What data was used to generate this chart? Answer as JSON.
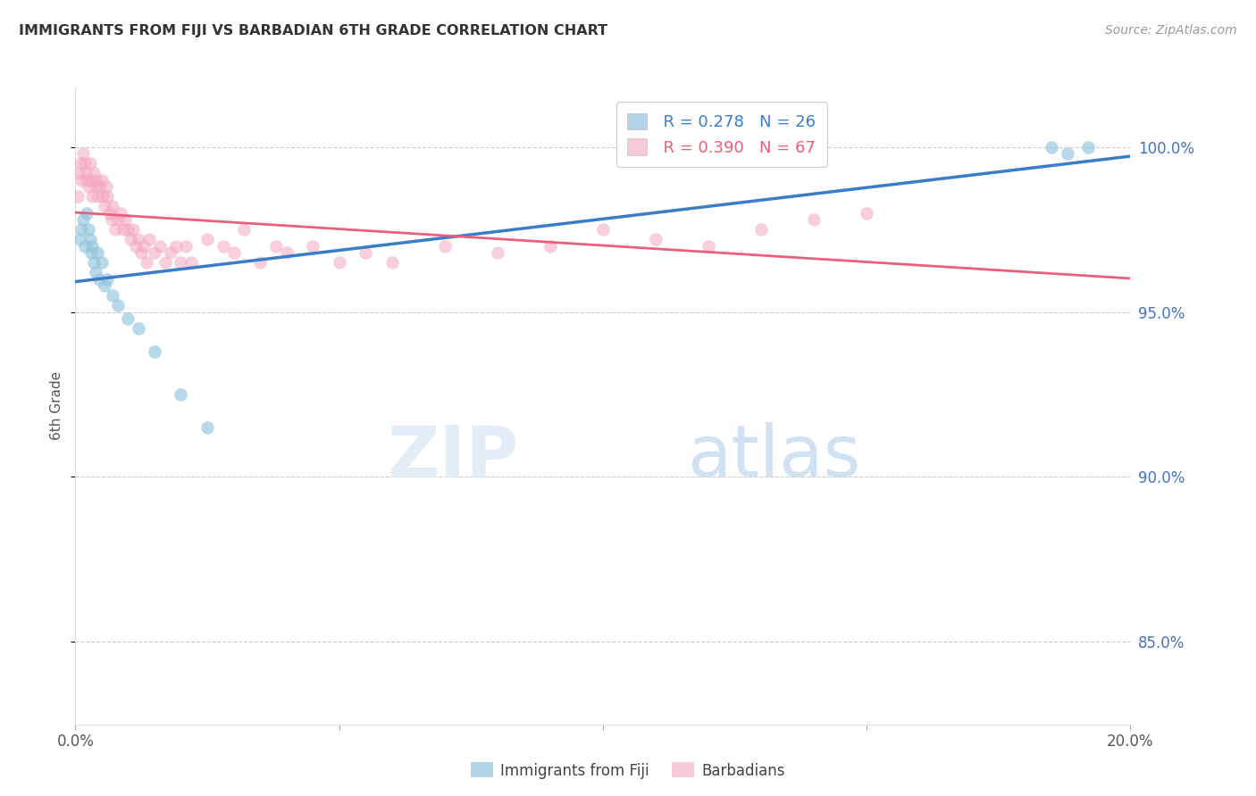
{
  "title": "IMMIGRANTS FROM FIJI VS BARBADIAN 6TH GRADE CORRELATION CHART",
  "source_text": "Source: ZipAtlas.com",
  "ylabel": "6th Grade",
  "xmin": 0.0,
  "xmax": 20.0,
  "ymin": 82.5,
  "ymax": 101.8,
  "fiji_color": "#92c5de",
  "barbadian_color": "#f4a6c0",
  "fiji_line_color": "#3b7dc8",
  "barbadian_line_color": "#e8607a",
  "legend_R_fiji": "R = 0.278",
  "legend_N_fiji": "N = 26",
  "legend_R_barb": "R = 0.390",
  "legend_N_barb": "N = 67",
  "fiji_x": [
    0.08,
    0.12,
    0.15,
    0.18,
    0.22,
    0.25,
    0.28,
    0.3,
    0.32,
    0.35,
    0.38,
    0.42,
    0.45,
    0.5,
    0.55,
    0.6,
    0.7,
    0.8,
    1.0,
    1.2,
    1.5,
    2.0,
    2.5,
    18.5,
    18.8,
    19.2
  ],
  "fiji_y": [
    97.2,
    97.5,
    97.8,
    97.0,
    98.0,
    97.5,
    97.2,
    96.8,
    97.0,
    96.5,
    96.2,
    96.8,
    96.0,
    96.5,
    95.8,
    96.0,
    95.5,
    95.2,
    94.8,
    94.5,
    93.8,
    92.5,
    91.5,
    100.0,
    99.8,
    100.0
  ],
  "barb_x": [
    0.05,
    0.08,
    0.1,
    0.12,
    0.15,
    0.18,
    0.2,
    0.22,
    0.25,
    0.28,
    0.3,
    0.32,
    0.35,
    0.38,
    0.4,
    0.42,
    0.45,
    0.5,
    0.52,
    0.55,
    0.58,
    0.6,
    0.65,
    0.68,
    0.7,
    0.75,
    0.8,
    0.85,
    0.9,
    0.95,
    1.0,
    1.05,
    1.1,
    1.15,
    1.2,
    1.25,
    1.3,
    1.35,
    1.4,
    1.5,
    1.6,
    1.7,
    1.8,
    1.9,
    2.0,
    2.1,
    2.2,
    2.5,
    2.8,
    3.0,
    3.2,
    3.5,
    3.8,
    4.0,
    4.5,
    5.0,
    5.5,
    6.0,
    7.0,
    8.0,
    9.0,
    10.0,
    11.0,
    12.0,
    13.0,
    14.0,
    15.0
  ],
  "barb_y": [
    98.5,
    99.2,
    99.5,
    99.0,
    99.8,
    99.5,
    99.2,
    99.0,
    98.8,
    99.5,
    99.0,
    98.5,
    99.2,
    98.8,
    99.0,
    98.5,
    98.8,
    99.0,
    98.5,
    98.2,
    98.8,
    98.5,
    98.0,
    97.8,
    98.2,
    97.5,
    97.8,
    98.0,
    97.5,
    97.8,
    97.5,
    97.2,
    97.5,
    97.0,
    97.2,
    96.8,
    97.0,
    96.5,
    97.2,
    96.8,
    97.0,
    96.5,
    96.8,
    97.0,
    96.5,
    97.0,
    96.5,
    97.2,
    97.0,
    96.8,
    97.5,
    96.5,
    97.0,
    96.8,
    97.0,
    96.5,
    96.8,
    96.5,
    97.0,
    96.8,
    97.0,
    97.5,
    97.2,
    97.0,
    97.5,
    97.8,
    98.0
  ]
}
